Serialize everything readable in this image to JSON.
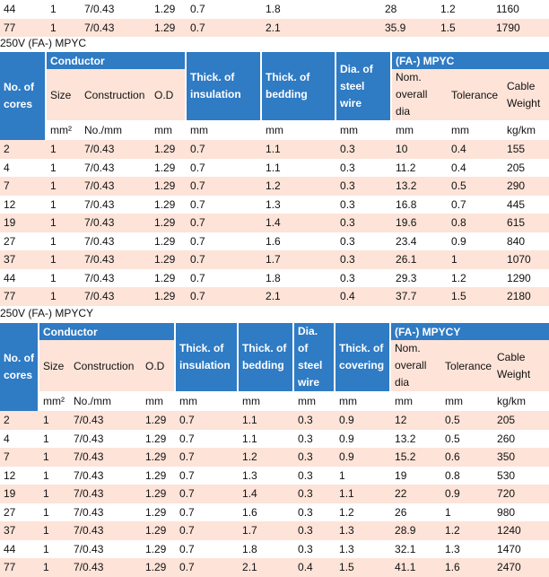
{
  "top_rows": [
    [
      "44",
      "1",
      "7/0.43",
      "1.29",
      "0.7",
      "1.8",
      "28",
      "1.2",
      "1160"
    ],
    [
      "77",
      "1",
      "7/0.43",
      "1.29",
      "0.7",
      "2.1",
      "35.9",
      "1.5",
      "1790"
    ]
  ],
  "mpyc": {
    "title": "250V (FA-) MPYC",
    "h_cores": "No. of cores",
    "h_conductor": "Conductor",
    "h_thick_ins": "Thick. of insulation",
    "h_thick_bed": "Thick. of bedding",
    "h_dia_steel": "Dia. of steel wire",
    "h_group": "(FA-) MPYC",
    "h_size": "Size",
    "h_construction": "Construction",
    "h_od": "O.D",
    "h_nom": "Nom. overall dia",
    "h_tol": "Tolerance",
    "h_weight": "Cable Weight",
    "units": [
      "mm²",
      "No./mm",
      "mm",
      "mm",
      "mm",
      "mm",
      "mm",
      "mm",
      "kg/km"
    ],
    "rows": [
      [
        "2",
        "1",
        "7/0.43",
        "1.29",
        "0.7",
        "1.1",
        "0.3",
        "10",
        "0.4",
        "155"
      ],
      [
        "4",
        "1",
        "7/0.43",
        "1.29",
        "0.7",
        "1.1",
        "0.3",
        "11.2",
        "0.4",
        "205"
      ],
      [
        "7",
        "1",
        "7/0.43",
        "1.29",
        "0.7",
        "1.2",
        "0.3",
        "13.2",
        "0.5",
        "290"
      ],
      [
        "12",
        "1",
        "7/0.43",
        "1.29",
        "0.7",
        "1.3",
        "0.3",
        "16.8",
        "0.7",
        "445"
      ],
      [
        "19",
        "1",
        "7/0.43",
        "1.29",
        "0.7",
        "1.4",
        "0.3",
        "19.6",
        "0.8",
        "615"
      ],
      [
        "27",
        "1",
        "7/0.43",
        "1.29",
        "0.7",
        "1.6",
        "0.3",
        "23.4",
        "0.9",
        "840"
      ],
      [
        "37",
        "1",
        "7/0.43",
        "1.29",
        "0.7",
        "1.7",
        "0.3",
        "26.1",
        "1",
        "1070"
      ],
      [
        "44",
        "1",
        "7/0.43",
        "1.29",
        "0.7",
        "1.8",
        "0.3",
        "29.3",
        "1.2",
        "1290"
      ],
      [
        "77",
        "1",
        "7/0.43",
        "1.29",
        "0.7",
        "2.1",
        "0.4",
        "37.7",
        "1.5",
        "2180"
      ]
    ]
  },
  "mpycy": {
    "title": "250V (FA-) MPYCY",
    "h_cores": "No. of cores",
    "h_conductor": "Conductor",
    "h_thick_ins": "Thick. of insulation",
    "h_thick_bed": "Thick. of bedding",
    "h_dia_steel": "Dia. of steel wire",
    "h_thick_cov": "Thick. of covering",
    "h_group": "(FA-) MPYCY",
    "h_size": "Size",
    "h_construction": "Construction",
    "h_od": "O.D",
    "h_nom": "Nom. overall dia",
    "h_tol": "Tolerance",
    "h_weight": "Cable Weight",
    "units": [
      "mm²",
      "No./mm",
      "mm",
      "mm",
      "mm",
      "mm",
      "mm",
      "mm",
      "mm",
      "kg/km"
    ],
    "rows": [
      [
        "2",
        "1",
        "7/0.43",
        "1.29",
        "0.7",
        "1.1",
        "0.3",
        "0.9",
        "12",
        "0.5",
        "205"
      ],
      [
        "4",
        "1",
        "7/0.43",
        "1.29",
        "0.7",
        "1.1",
        "0.3",
        "0.9",
        "13.2",
        "0.5",
        "260"
      ],
      [
        "7",
        "1",
        "7/0.43",
        "1.29",
        "0.7",
        "1.2",
        "0.3",
        "0.9",
        "15.2",
        "0.6",
        "350"
      ],
      [
        "12",
        "1",
        "7/0.43",
        "1.29",
        "0.7",
        "1.3",
        "0.3",
        "1",
        "19",
        "0.8",
        "530"
      ],
      [
        "19",
        "1",
        "7/0.43",
        "1.29",
        "0.7",
        "1.4",
        "0.3",
        "1.1",
        "22",
        "0.9",
        "720"
      ],
      [
        "27",
        "1",
        "7/0.43",
        "1.29",
        "0.7",
        "1.6",
        "0.3",
        "1.2",
        "26",
        "1",
        "980"
      ],
      [
        "37",
        "1",
        "7/0.43",
        "1.29",
        "0.7",
        "1.7",
        "0.3",
        "1.3",
        "28.9",
        "1.2",
        "1240"
      ],
      [
        "44",
        "1",
        "7/0.43",
        "1.29",
        "0.7",
        "1.8",
        "0.3",
        "1.3",
        "32.1",
        "1.3",
        "1470"
      ],
      [
        "77",
        "1",
        "7/0.43",
        "1.29",
        "0.7",
        "2.1",
        "0.4",
        "1.5",
        "41.1",
        "1.6",
        "2470"
      ]
    ]
  }
}
